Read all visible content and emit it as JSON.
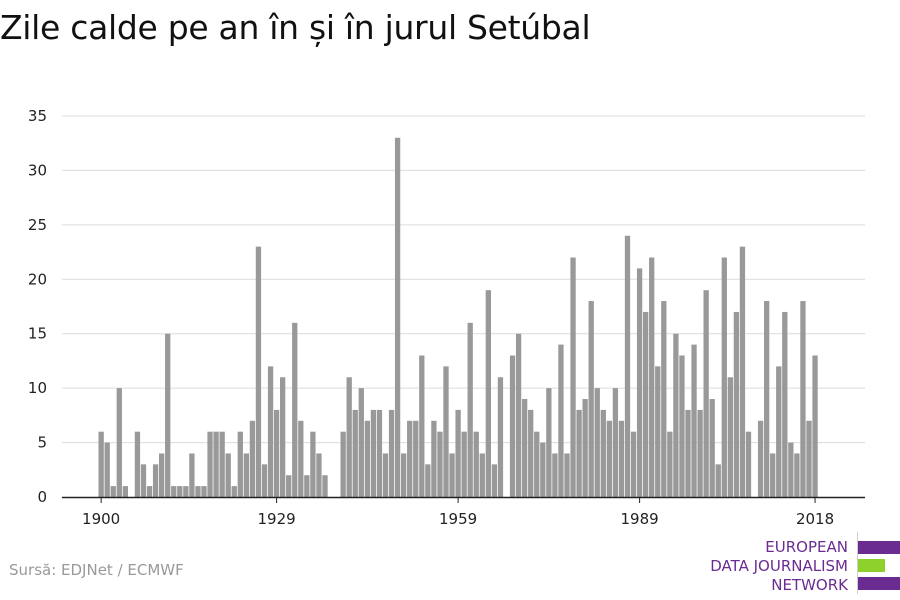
{
  "title": "Zile calde pe an în și în jurul Setúbal",
  "source": "Sursă: EDJNet / ECMWF",
  "logo": {
    "lines": [
      "EUROPEAN",
      "DATA JOURNALISM",
      "NETWORK"
    ],
    "colors": {
      "purple": "#6b2c91",
      "green": "#8ed12d"
    }
  },
  "chart_data": {
    "type": "bar",
    "title": "Zile calde pe an în și în jurul Setúbal",
    "xlabel": "",
    "ylabel": "",
    "ylim": [
      0,
      35
    ],
    "y_ticks": [
      0,
      5,
      10,
      15,
      20,
      25,
      30,
      35
    ],
    "x_ticks": [
      1900,
      1929,
      1959,
      1989,
      2018
    ],
    "grid": true,
    "bar_color": "#999999",
    "years": [
      1900,
      1901,
      1902,
      1903,
      1904,
      1905,
      1906,
      1907,
      1908,
      1909,
      1910,
      1911,
      1912,
      1913,
      1914,
      1915,
      1916,
      1917,
      1918,
      1919,
      1920,
      1921,
      1922,
      1923,
      1924,
      1925,
      1926,
      1927,
      1928,
      1929,
      1930,
      1931,
      1932,
      1933,
      1934,
      1935,
      1936,
      1937,
      1938,
      1939,
      1940,
      1941,
      1942,
      1943,
      1944,
      1945,
      1946,
      1947,
      1948,
      1949,
      1950,
      1951,
      1952,
      1953,
      1954,
      1955,
      1956,
      1957,
      1958,
      1959,
      1960,
      1961,
      1962,
      1963,
      1964,
      1965,
      1966,
      1967,
      1968,
      1969,
      1970,
      1971,
      1972,
      1973,
      1974,
      1975,
      1976,
      1977,
      1978,
      1979,
      1980,
      1981,
      1982,
      1983,
      1984,
      1985,
      1986,
      1987,
      1988,
      1989,
      1990,
      1991,
      1992,
      1993,
      1994,
      1995,
      1996,
      1997,
      1998,
      1999,
      2000,
      2001,
      2002,
      2003,
      2004,
      2005,
      2006,
      2007,
      2008,
      2009,
      2010,
      2011,
      2012,
      2013,
      2014,
      2015,
      2016,
      2017,
      2018
    ],
    "values": [
      6,
      5,
      1,
      10,
      1,
      0,
      6,
      3,
      1,
      3,
      4,
      15,
      1,
      1,
      1,
      4,
      1,
      1,
      6,
      6,
      6,
      4,
      1,
      6,
      4,
      7,
      23,
      3,
      12,
      8,
      11,
      2,
      16,
      7,
      2,
      6,
      4,
      2,
      0,
      0,
      6,
      11,
      8,
      10,
      7,
      8,
      8,
      4,
      8,
      33,
      4,
      7,
      7,
      13,
      3,
      7,
      6,
      12,
      4,
      8,
      6,
      16,
      6,
      4,
      19,
      3,
      11,
      0,
      13,
      15,
      9,
      8,
      6,
      5,
      10,
      4,
      14,
      4,
      22,
      8,
      9,
      18,
      10,
      8,
      7,
      10,
      7,
      24,
      6,
      21,
      17,
      22,
      12,
      18,
      6,
      15,
      13,
      8,
      14,
      8,
      19,
      9,
      3,
      22,
      11,
      17,
      23,
      6,
      0,
      7,
      18,
      4,
      12,
      17,
      5,
      4,
      18,
      7,
      13
    ]
  }
}
